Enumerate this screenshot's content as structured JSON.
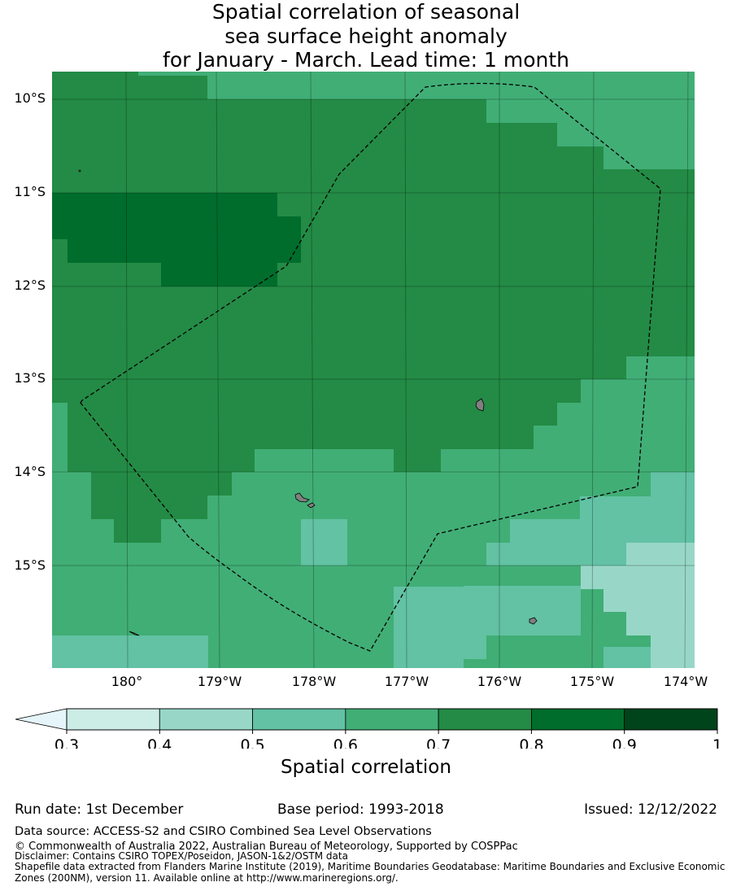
{
  "title": {
    "line1": "Spatial correlation of seasonal",
    "line2": "sea surface height anomaly",
    "line3": "for January - March. Lead time: 1 month"
  },
  "map": {
    "lat_labels": [
      "10°S",
      "11°S",
      "12°S",
      "13°S",
      "14°S",
      "15°S"
    ],
    "lon_labels": [
      "180°",
      "179°W",
      "178°W",
      "177°W",
      "176°W",
      "175°W",
      "174°W"
    ],
    "boundary": "EEZ outline (dashed)",
    "land_color": "#808080"
  },
  "chart_data": {
    "type": "heatmap",
    "title": "Spatial correlation of seasonal sea surface height anomaly for January - March. Lead time: 1 month",
    "variable": "Spatial correlation",
    "lon_range": [
      "180.8°E",
      "173.9°W"
    ],
    "lat_range": [
      "9.7°S",
      "16.1°S"
    ],
    "grid_resolution_deg": 0.25,
    "value_classes": [
      {
        "label": "0.4–0.5",
        "color": "#98d7c7"
      },
      {
        "label": "0.5–0.6",
        "color": "#62c2a3"
      },
      {
        "label": "0.6–0.7",
        "color": "#41ae76"
      },
      {
        "label": "0.7–0.8",
        "color": "#238b45"
      },
      {
        "label": "0.8–0.9",
        "color": "#006d2c"
      }
    ],
    "colorbar": {
      "ticks": [
        "0.3",
        "0.4",
        "0.5",
        "0.6",
        "0.7",
        "0.8",
        "0.9",
        "1"
      ],
      "colors": [
        "#ccece6",
        "#98d7c7",
        "#62c2a3",
        "#41ae76",
        "#238b45",
        "#006d2c",
        "#00441b"
      ],
      "extend_color": "#e5f5f9",
      "label": "Spatial correlation"
    }
  },
  "footer": {
    "run_date": "Run date: 1st December",
    "base_period": "Base period: 1993-2018",
    "issued": "Issued: 12/12/2022",
    "data_source": "Data source: ACCESS-S2 and CSIRO Combined Sea Level Observations",
    "copyright": "© Commonwealth of Australia 2022, Australian Bureau of Meteorology, Supported by COSPPac",
    "disclaimer": "Disclaimer: Contains CSIRO TOPEX/Poseidon, JASON-1&2/OSTM data",
    "shapefile_1": "Shapefile data extracted from Flanders Marine Institute (2019), Maritime Boundaries Geodatabase: Maritime Boundaries and Exclusive Economic",
    "shapefile_2": "Zones (200NM), version 11. Available online at http://www.marineregions.org/."
  }
}
